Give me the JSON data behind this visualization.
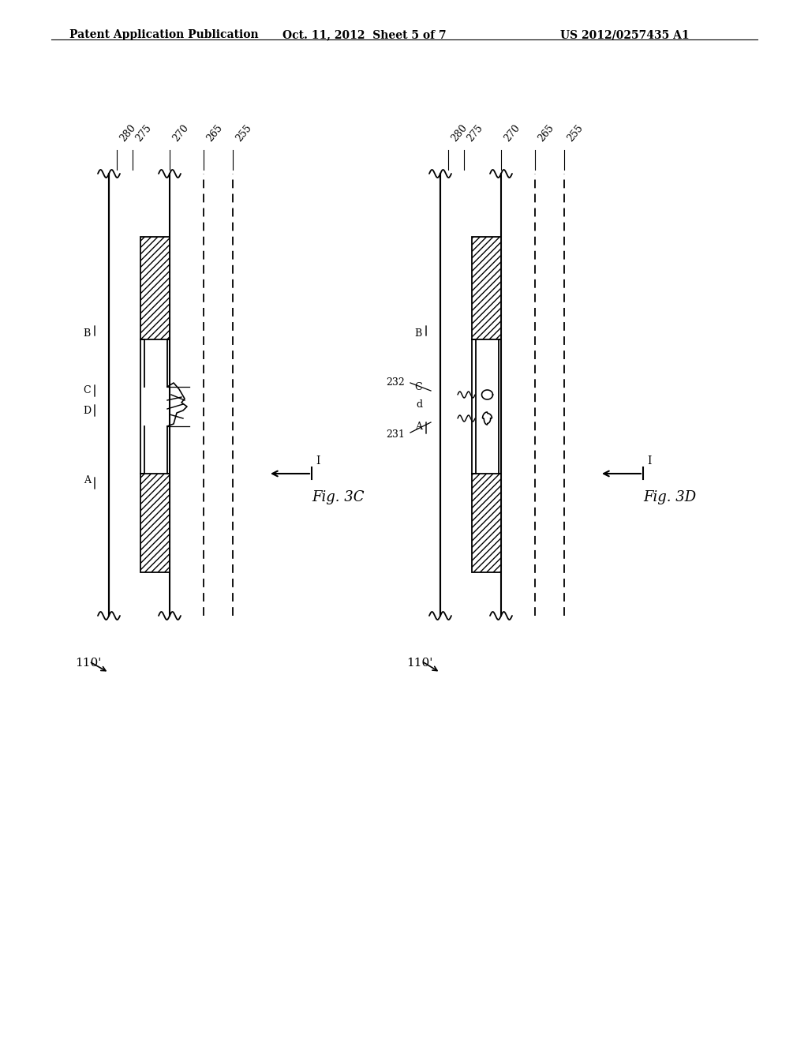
{
  "header_left": "Patent Application Publication",
  "header_mid": "Oct. 11, 2012  Sheet 5 of 7",
  "header_right": "US 2012/0257435 A1",
  "fig_label_3c": "Fig. 3C",
  "fig_label_3d": "Fig. 3D",
  "ref_labels": [
    "280",
    "275",
    "270",
    "265",
    "255"
  ],
  "device_label": "110'",
  "bg_color": "#ffffff",
  "line_color": "#000000"
}
